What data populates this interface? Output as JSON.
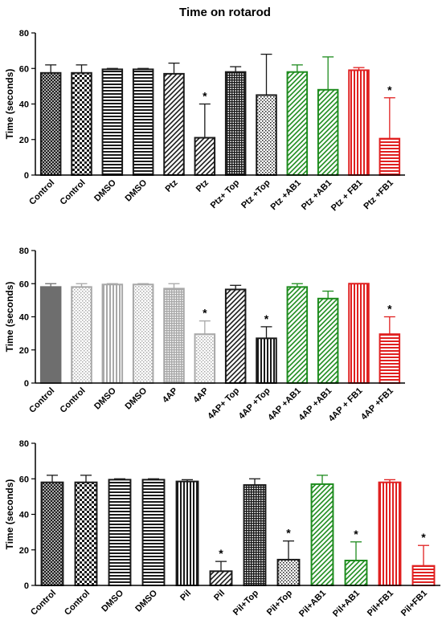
{
  "figure_title": "Time on rotarod",
  "colors": {
    "black": "#1a1a1a",
    "green": "#1e8c1e",
    "red": "#e02020",
    "dark_gray": "#6e6e6e",
    "mid_gray": "#a8a8a8"
  },
  "chart_data": [
    {
      "type": "bar",
      "title": "Time on rotarod",
      "ylabel": "Time (seconds)",
      "ylim": [
        0,
        80
      ],
      "yticks": [
        0,
        20,
        40,
        60,
        80
      ],
      "categories": [
        "Control",
        "Control",
        "DMSO",
        "DMSO",
        "Ptz",
        "Ptz",
        "Ptz+ Top",
        "Ptz +Top",
        "Ptz +AB1",
        "Ptz +AB1",
        "Ptz + FB1",
        "Ptz +FB1"
      ],
      "values": [
        57.5,
        57.5,
        59.5,
        59.5,
        57,
        21,
        58,
        45,
        58,
        48,
        59,
        20.5
      ],
      "errors": [
        4.5,
        4.5,
        0.5,
        0.5,
        6,
        19,
        3,
        23,
        4,
        18.5,
        1.5,
        23
      ],
      "significant": [
        false,
        false,
        false,
        false,
        false,
        true,
        false,
        false,
        false,
        false,
        false,
        true
      ],
      "bar_colors": [
        "black",
        "black",
        "black",
        "black",
        "black",
        "black",
        "black",
        "black",
        "green",
        "green",
        "red",
        "red"
      ],
      "patterns": [
        "crosshatch",
        "checker",
        "hlines",
        "hlines",
        "diag",
        "diag",
        "grid",
        "dots",
        "diag",
        "diag",
        "vlines",
        "hlines"
      ],
      "star_label": "*"
    },
    {
      "type": "bar",
      "title": "",
      "ylabel": "Time (seconds)",
      "ylim": [
        0,
        80
      ],
      "yticks": [
        0,
        20,
        40,
        60,
        80
      ],
      "categories": [
        "Control",
        "Control",
        "DMSO",
        "DMSO",
        "4AP",
        "4AP",
        "4AP+ Top",
        "4AP +Top",
        "4AP +AB1",
        "4AP +AB1",
        "4AP + FB1",
        "4AP +FB1"
      ],
      "values": [
        58,
        58,
        59.5,
        59.5,
        57,
        29.5,
        56.5,
        27,
        58,
        51,
        60,
        29.5
      ],
      "errors": [
        2,
        2,
        0.5,
        0.5,
        3,
        8,
        2.5,
        7,
        2,
        4.5,
        0,
        10.5
      ],
      "significant": [
        false,
        false,
        false,
        false,
        false,
        true,
        false,
        true,
        false,
        false,
        false,
        true
      ],
      "bar_colors": [
        "dark_gray",
        "mid_gray",
        "mid_gray",
        "mid_gray",
        "mid_gray",
        "mid_gray",
        "black",
        "black",
        "green",
        "green",
        "red",
        "red"
      ],
      "patterns": [
        "solid",
        "dots",
        "vlines",
        "dots",
        "grid",
        "dots",
        "diag",
        "vlines",
        "diag",
        "diag",
        "vlines",
        "hlines"
      ],
      "star_label": "*"
    },
    {
      "type": "bar",
      "title": "",
      "ylabel": "Time (seconds)",
      "ylim": [
        0,
        80
      ],
      "yticks": [
        0,
        20,
        40,
        60,
        80
      ],
      "categories": [
        "Control",
        "Control",
        "DMSO",
        "DMSO",
        "Pil",
        "Pil",
        "Pil+Top",
        "Pil+Top",
        "Pil+AB1",
        "Pil+AB1",
        "Pil+FB1",
        "Pil+FB1"
      ],
      "values": [
        58,
        58,
        59.5,
        59.5,
        58.5,
        8,
        56.5,
        14.5,
        57,
        14,
        58,
        11
      ],
      "errors": [
        4,
        4,
        0.5,
        0.5,
        1,
        5.5,
        3.5,
        10.5,
        5,
        10.5,
        1.5,
        11.5
      ],
      "significant": [
        false,
        false,
        false,
        false,
        false,
        true,
        false,
        true,
        false,
        true,
        false,
        true
      ],
      "bar_colors": [
        "black",
        "black",
        "black",
        "black",
        "black",
        "black",
        "black",
        "black",
        "green",
        "green",
        "red",
        "red"
      ],
      "patterns": [
        "crosshatch",
        "checker",
        "hlines",
        "hlines",
        "vlines",
        "diag",
        "grid",
        "dots",
        "diag",
        "diag",
        "vlines",
        "hlines"
      ],
      "star_label": "*"
    }
  ]
}
